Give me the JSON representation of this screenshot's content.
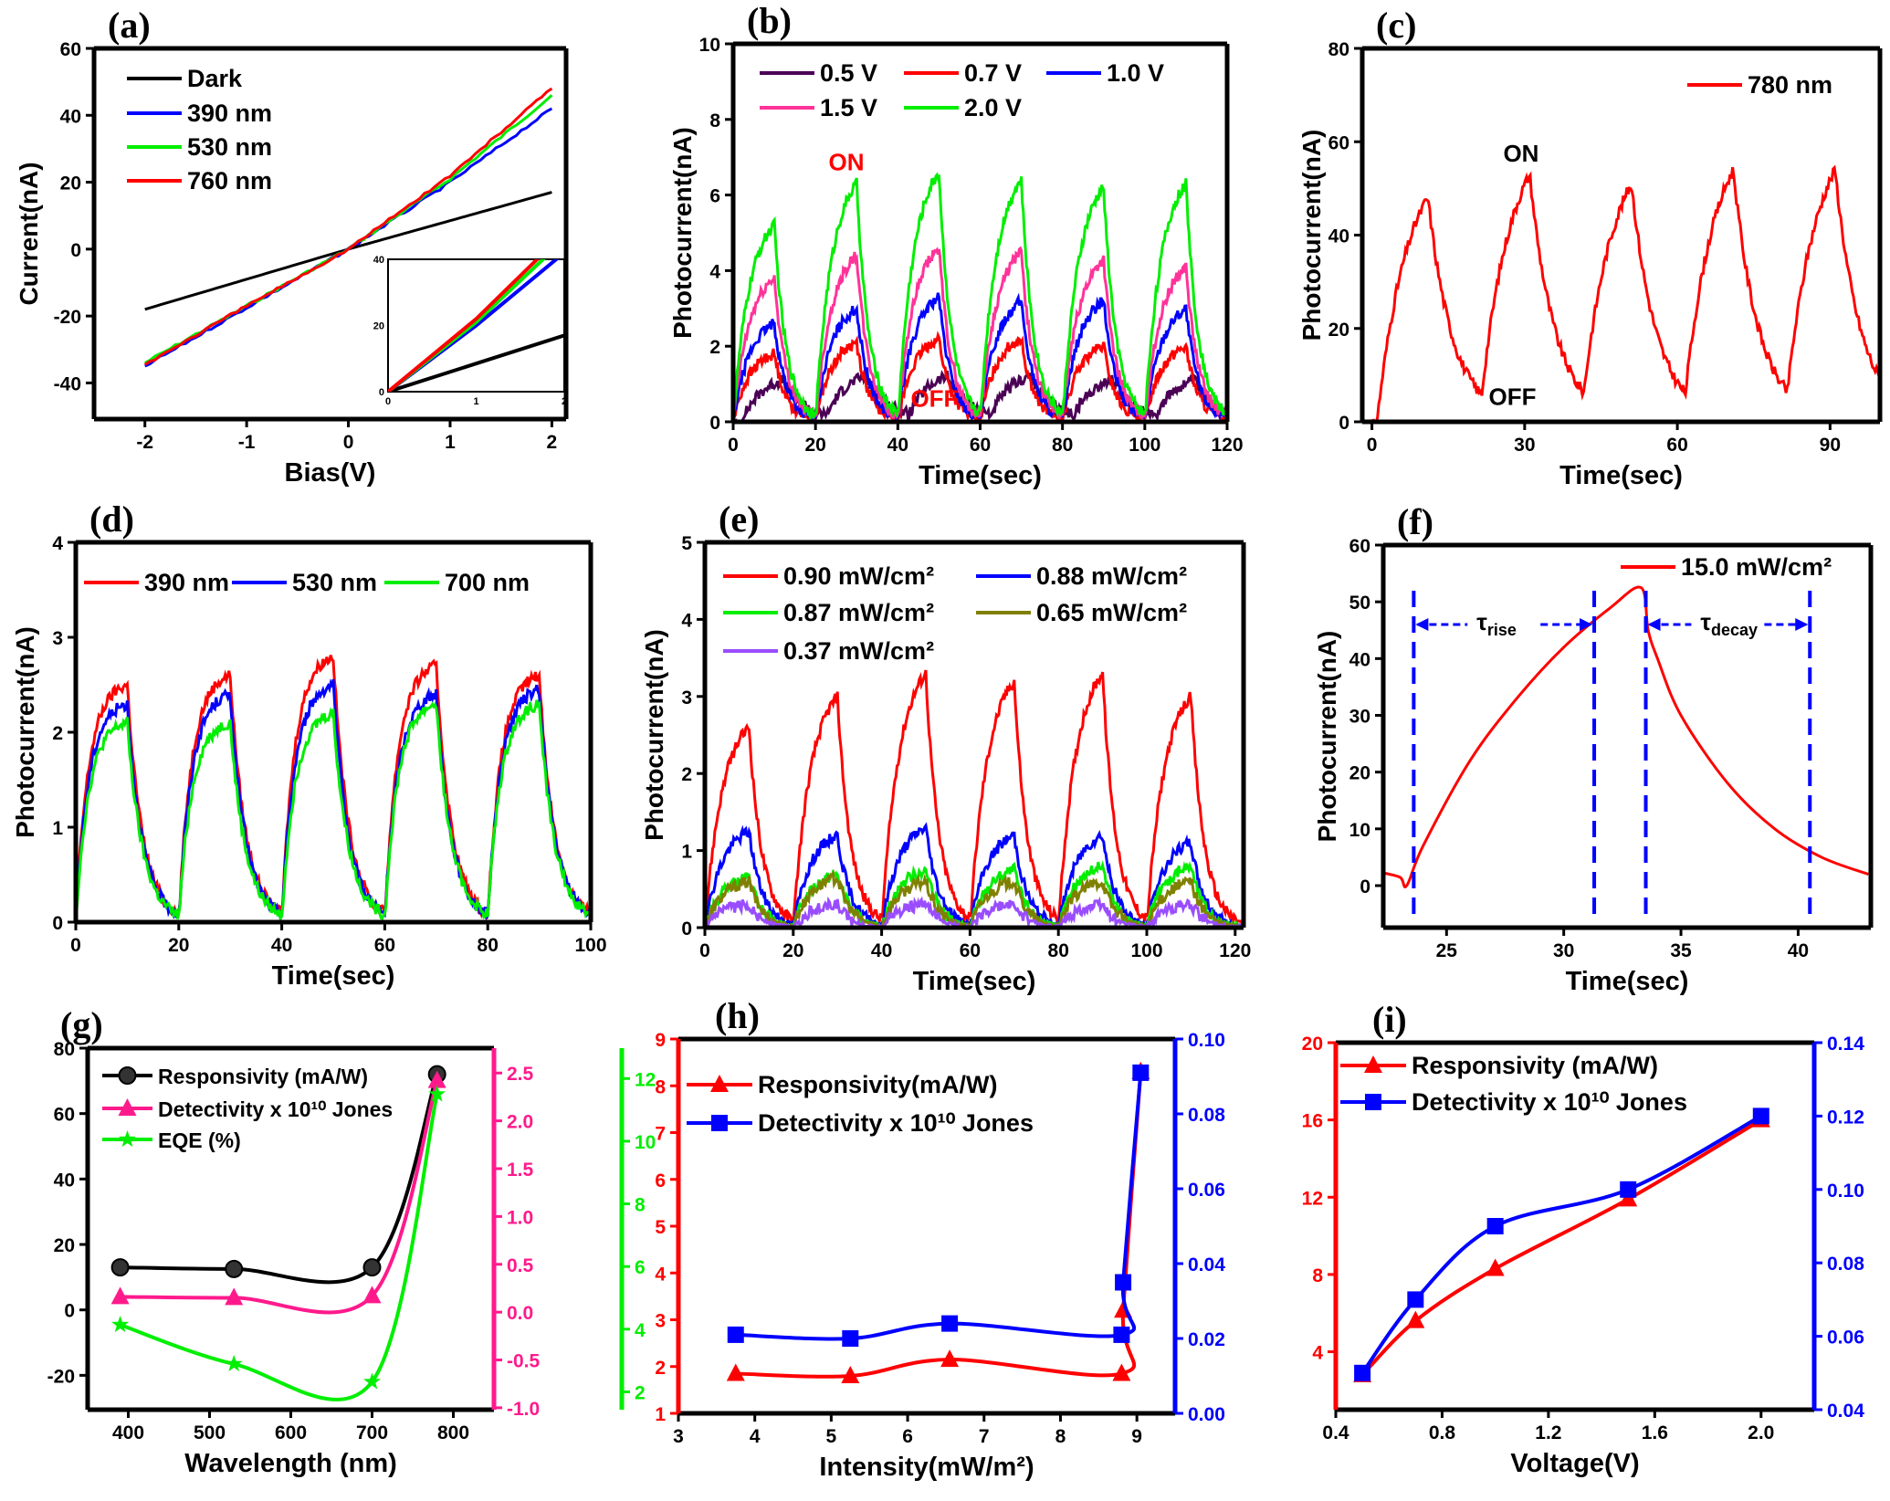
{
  "chart_data": [
    {
      "id": "a",
      "panel_label": "(a)",
      "type": "line",
      "x": {
        "label": "Bias(V)",
        "range": [
          -2.5,
          2.14
        ],
        "ticks": [
          -2,
          -1,
          0,
          1,
          2
        ]
      },
      "y": {
        "label": "Current(nA)",
        "range": [
          -50.8,
          60
        ],
        "ticks": [
          -40,
          -20,
          0,
          20,
          40,
          60
        ]
      },
      "series": [
        {
          "name": "Dark",
          "color": "#000000",
          "x": [
            -2,
            -1,
            0,
            1,
            2
          ],
          "y": [
            -18,
            -9,
            0,
            8.5,
            17
          ]
        },
        {
          "name": "390 nm",
          "color": "#0000ff",
          "x": [
            -2,
            -1,
            0,
            1,
            2
          ],
          "y": [
            -35,
            -17.5,
            0,
            20,
            42
          ]
        },
        {
          "name": "530 nm",
          "color": "#00ee00",
          "x": [
            -2,
            -1,
            0,
            1,
            2
          ],
          "y": [
            -34,
            -17,
            0,
            21,
            46
          ]
        },
        {
          "name": "760 nm",
          "color": "#ff0000",
          "x": [
            -2,
            -1,
            0,
            1,
            2
          ],
          "y": [
            -34.5,
            -17,
            0,
            22,
            48
          ]
        }
      ],
      "inset": {
        "x": {
          "range": [
            0,
            2
          ],
          "ticks": [
            0,
            1,
            2
          ]
        },
        "y": {
          "range": [
            0,
            40
          ],
          "ticks": [
            0,
            20,
            40
          ]
        }
      }
    },
    {
      "id": "b",
      "panel_label": "(b)",
      "type": "line",
      "x": {
        "label": "Time(sec)",
        "range": [
          0,
          120
        ],
        "ticks": [
          0,
          20,
          40,
          60,
          80,
          100,
          120
        ]
      },
      "y": {
        "label": "Photocurrent(nA)",
        "range": [
          0,
          10
        ],
        "ticks": [
          0,
          2,
          4,
          6,
          8,
          10
        ]
      },
      "light_on_s": [
        0,
        20,
        40,
        60,
        80,
        100
      ],
      "pulse_width_s": 10,
      "series": [
        {
          "name": "0.5 V",
          "color": "#4b0055",
          "peaks": [
            1.1,
            1.2,
            1.2,
            1.2,
            1.1,
            1.1
          ]
        },
        {
          "name": "0.7 V",
          "color": "#ff0000",
          "peaks": [
            1.8,
            2.1,
            2.2,
            2.2,
            2.0,
            2.0
          ]
        },
        {
          "name": "1.0 V",
          "color": "#0000ff",
          "peaks": [
            2.6,
            3.0,
            3.3,
            3.2,
            3.2,
            3.0
          ]
        },
        {
          "name": "1.5 V",
          "color": "#ff3399",
          "peaks": [
            3.8,
            4.4,
            4.6,
            4.5,
            4.3,
            4.1
          ]
        },
        {
          "name": "2.0 V",
          "color": "#00ee00",
          "peaks": [
            5.2,
            6.3,
            6.6,
            6.4,
            6.2,
            6.3
          ]
        }
      ],
      "annotations": [
        {
          "text": "ON",
          "x": 27.5,
          "y": 6.65,
          "color": "#ff0000"
        },
        {
          "text": "OFF",
          "x": 48.9,
          "y": 0.4,
          "color": "#ff0000"
        }
      ]
    },
    {
      "id": "c",
      "panel_label": "(c)",
      "type": "line",
      "x": {
        "label": "Time(sec)",
        "range": [
          -1.9,
          99.8
        ],
        "ticks": [
          0,
          30,
          60,
          90
        ]
      },
      "y": {
        "label": "Photocurrent(nA)",
        "range": [
          0,
          80
        ],
        "ticks": [
          0,
          20,
          40,
          60,
          80
        ]
      },
      "light_on_s": [
        1,
        21,
        41,
        61,
        81
      ],
      "pulse_width_s": 10,
      "series": [
        {
          "name": "780 nm",
          "color": "#ff0000",
          "peaks": [
            48,
            53,
            51,
            54,
            54
          ]
        }
      ],
      "annotations": [
        {
          "text": "ON",
          "x": 29.3,
          "y": 55.7,
          "color": "#000000"
        },
        {
          "text": "OFF",
          "x": 27.6,
          "y": 3.6,
          "color": "#000000"
        }
      ]
    },
    {
      "id": "d",
      "panel_label": "(d)",
      "type": "line",
      "x": {
        "label": "Time(sec)",
        "range": [
          0,
          100
        ],
        "ticks": [
          0,
          20,
          40,
          60,
          80,
          100
        ]
      },
      "y": {
        "label": "Photocurrent(nA)",
        "range": [
          0,
          4
        ],
        "ticks": [
          0,
          1,
          2,
          3,
          4
        ]
      },
      "light_on_s": [
        0,
        20,
        40,
        60,
        80
      ],
      "pulse_width_s": 10,
      "series": [
        {
          "name": "390 nm",
          "color": "#ff0000",
          "peaks": [
            2.5,
            2.6,
            2.8,
            2.7,
            2.6
          ]
        },
        {
          "name": "530 nm",
          "color": "#0000ff",
          "peaks": [
            2.3,
            2.4,
            2.5,
            2.4,
            2.45
          ]
        },
        {
          "name": "700 nm",
          "color": "#00ee00",
          "peaks": [
            2.1,
            2.1,
            2.2,
            2.3,
            2.3
          ]
        }
      ]
    },
    {
      "id": "e",
      "panel_label": "(e)",
      "type": "line",
      "x": {
        "label": "Time(sec)",
        "range": [
          0,
          121.9
        ],
        "ticks": [
          0,
          20,
          40,
          60,
          80,
          100,
          120
        ]
      },
      "y": {
        "label": "Photocurrent(nA)",
        "range": [
          0,
          5
        ],
        "ticks": [
          0,
          1,
          2,
          3,
          4,
          5
        ]
      },
      "light_on_s": [
        0,
        20,
        40,
        60,
        80,
        100
      ],
      "pulse_width_s": 10,
      "series": [
        {
          "name": "0.90 mW/cm²",
          "color": "#ff0000",
          "peaks": [
            2.6,
            3.0,
            3.3,
            3.2,
            3.3,
            3.0
          ]
        },
        {
          "name": "0.88 mW/cm²",
          "color": "#0000ff",
          "peaks": [
            1.25,
            1.2,
            1.3,
            1.2,
            1.2,
            1.1
          ]
        },
        {
          "name": "0.87 mW/cm²",
          "color": "#00ee00",
          "peaks": [
            0.65,
            0.7,
            0.75,
            0.75,
            0.8,
            0.8
          ]
        },
        {
          "name": "0.65 mW/cm²",
          "color": "#808000",
          "peaks": [
            0.6,
            0.65,
            0.6,
            0.6,
            0.6,
            0.6
          ]
        },
        {
          "name": "0.37 mW/cm²",
          "color": "#9a4dff",
          "peaks": [
            0.3,
            0.3,
            0.3,
            0.3,
            0.3,
            0.3
          ]
        }
      ]
    },
    {
      "id": "f",
      "panel_label": "(f)",
      "type": "line",
      "x": {
        "label": "Time(sec)",
        "range": [
          22.3,
          43.1
        ],
        "ticks": [
          25,
          30,
          35,
          40
        ]
      },
      "y": {
        "label": "Photocurrent(nA)",
        "range": [
          -7.4,
          60
        ],
        "ticks": [
          0,
          10,
          20,
          30,
          40,
          50,
          60
        ]
      },
      "series": [
        {
          "name": "15.0 mW/cm²",
          "color": "#ff0000",
          "x": [
            22,
            23,
            23.3,
            24,
            26,
            28,
            30,
            32,
            33.3,
            33.6,
            34,
            35,
            37,
            39,
            41,
            43
          ],
          "y": [
            2.5,
            1.5,
            0,
            7,
            22,
            33,
            42,
            49,
            52.5,
            45,
            40,
            30,
            18,
            10,
            5,
            2
          ]
        }
      ],
      "markers_x": [
        23.6,
        31.3,
        33.5,
        40.5
      ],
      "spans": [
        {
          "symbol": "τ",
          "sub": "rise",
          "from": 23.6,
          "to": 31.3,
          "y": 46
        },
        {
          "symbol": "τ",
          "sub": "decay",
          "from": 33.5,
          "to": 40.5,
          "y": 46
        }
      ]
    },
    {
      "id": "g",
      "panel_label": "(g)",
      "type": "line",
      "x": {
        "label": "Wavelength (nm)",
        "range": [
          350,
          850
        ],
        "ticks": [
          400,
          500,
          600,
          700,
          800
        ]
      },
      "y": {
        "label": "",
        "range": [
          -30.5,
          80
        ],
        "ticks": [
          -20,
          0,
          20,
          40,
          60,
          80
        ],
        "color": "#000000"
      },
      "y2": {
        "range": [
          -1.02,
          2.76
        ],
        "ticks": [
          "-1.0",
          "-0.5",
          "0.0",
          "0.5",
          "1.0",
          "1.5",
          "2.0",
          "2.5"
        ],
        "color": "#ff1a8c"
      },
      "y3": {
        "range": [
          1.43,
          12.97
        ],
        "ticks": [
          2,
          4,
          6,
          8,
          10,
          12
        ],
        "color": "#00ee00"
      },
      "series": [
        {
          "name": "Responsivity (mA/W)",
          "color": "#000000",
          "marker": "circle",
          "axis": "y",
          "x": [
            390,
            530,
            700,
            780
          ],
          "y": [
            13,
            12.5,
            13,
            72
          ]
        },
        {
          "name": "Detectivity x 10¹⁰ Jones",
          "color": "#ff1a8c",
          "marker": "triangle",
          "axis": "y2",
          "x": [
            390,
            530,
            700,
            780
          ],
          "y": [
            0.16,
            0.15,
            0.17,
            2.42
          ]
        },
        {
          "name": "EQE (%)",
          "color": "#00ee00",
          "marker": "star",
          "axis": "y3",
          "x": [
            390,
            530,
            700,
            780
          ],
          "y": [
            4.14,
            2.89,
            2.32,
            11.5
          ]
        }
      ]
    },
    {
      "id": "h",
      "panel_label": "(h)",
      "type": "line",
      "x": {
        "label": "Intensity(mW/m²)",
        "range": [
          3,
          9.5
        ],
        "ticks": [
          3,
          4,
          5,
          6,
          7,
          8,
          9
        ]
      },
      "y": {
        "label": "",
        "range": [
          1,
          9
        ],
        "ticks": [
          1,
          2,
          3,
          4,
          5,
          6,
          7,
          8,
          9
        ],
        "color": "#ff0000"
      },
      "y2": {
        "range": [
          0,
          0.1
        ],
        "ticks": [
          "0.00",
          "0.02",
          "0.04",
          "0.06",
          "0.08",
          "0.10"
        ],
        "color": "#0000ff"
      },
      "series": [
        {
          "name": "Responsivity(mA/W)",
          "color": "#ff0000",
          "marker": "triangle",
          "axis": "y",
          "x": [
            3.75,
            5.25,
            6.55,
            8.8,
            8.82,
            9.05
          ],
          "y": [
            1.85,
            1.8,
            2.15,
            1.85,
            3.2,
            8.3
          ]
        },
        {
          "name": "Detectivity x 10¹⁰ Jones",
          "color": "#0000ff",
          "marker": "square",
          "axis": "y2",
          "x": [
            3.75,
            5.25,
            6.55,
            8.8,
            8.82,
            9.05
          ],
          "y": [
            0.021,
            0.02,
            0.024,
            0.021,
            0.035,
            0.091
          ]
        }
      ]
    },
    {
      "id": "i",
      "panel_label": "(i)",
      "type": "line",
      "x": {
        "label": "Voltage(V)",
        "range": [
          0.4,
          2.2
        ],
        "ticks": [
          "0.4",
          "0.8",
          "1.2",
          "1.6",
          "2.0"
        ]
      },
      "y": {
        "label": "",
        "range": [
          1,
          20
        ],
        "ticks": [
          4,
          8,
          12,
          16,
          20
        ],
        "color": "#ff0000"
      },
      "y2": {
        "range": [
          0.04,
          0.14
        ],
        "ticks": [
          "0.04",
          "0.06",
          "0.08",
          "0.10",
          "0.12",
          "0.14"
        ],
        "color": "#0000ff"
      },
      "series": [
        {
          "name": "Responsivity (mA/W)",
          "color": "#ff0000",
          "marker": "triangle",
          "axis": "y",
          "x": [
            0.5,
            0.7,
            1.0,
            1.5,
            2.0
          ],
          "y": [
            2.8,
            5.6,
            8.3,
            11.9,
            16
          ]
        },
        {
          "name": "Detectivity x 10¹⁰ Jones",
          "color": "#0000ff",
          "marker": "square",
          "axis": "y2",
          "x": [
            0.5,
            0.7,
            1.0,
            1.5,
            2.0
          ],
          "y": [
            0.05,
            0.07,
            0.09,
            0.1,
            0.12
          ]
        }
      ]
    }
  ]
}
